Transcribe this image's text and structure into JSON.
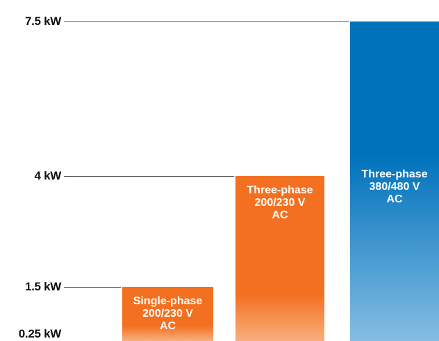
{
  "chart_data": {
    "type": "bar",
    "title": "",
    "xlabel": "",
    "ylabel": "",
    "y_ticks": [
      {
        "value": 0.25,
        "label": "0.25 kW"
      },
      {
        "value": 1.5,
        "label": "1.5 kW"
      },
      {
        "value": 4,
        "label": "4 kW"
      },
      {
        "value": 7.5,
        "label": "7.5 kW"
      }
    ],
    "categories": [
      "Single-phase 200/230 V AC",
      "Three-phase 200/230 V AC",
      "Three-phase 380/480 V AC"
    ],
    "bars": [
      {
        "label": "Single-phase\n200/230 V\nAC",
        "min": 0.25,
        "max": 1.5,
        "color": "#f37021",
        "fade": "#f8b07e"
      },
      {
        "label": "Three-phase\n200/230 V\nAC",
        "min": 0.25,
        "max": 4,
        "color": "#f37021",
        "fade": "#f8b07e"
      },
      {
        "label": "Three-phase\n380/480 V\nAC",
        "min": 0.25,
        "max": 7.5,
        "color": "#0072bc",
        "fade": "#85bde3"
      }
    ],
    "grid": false,
    "legend": "none"
  }
}
